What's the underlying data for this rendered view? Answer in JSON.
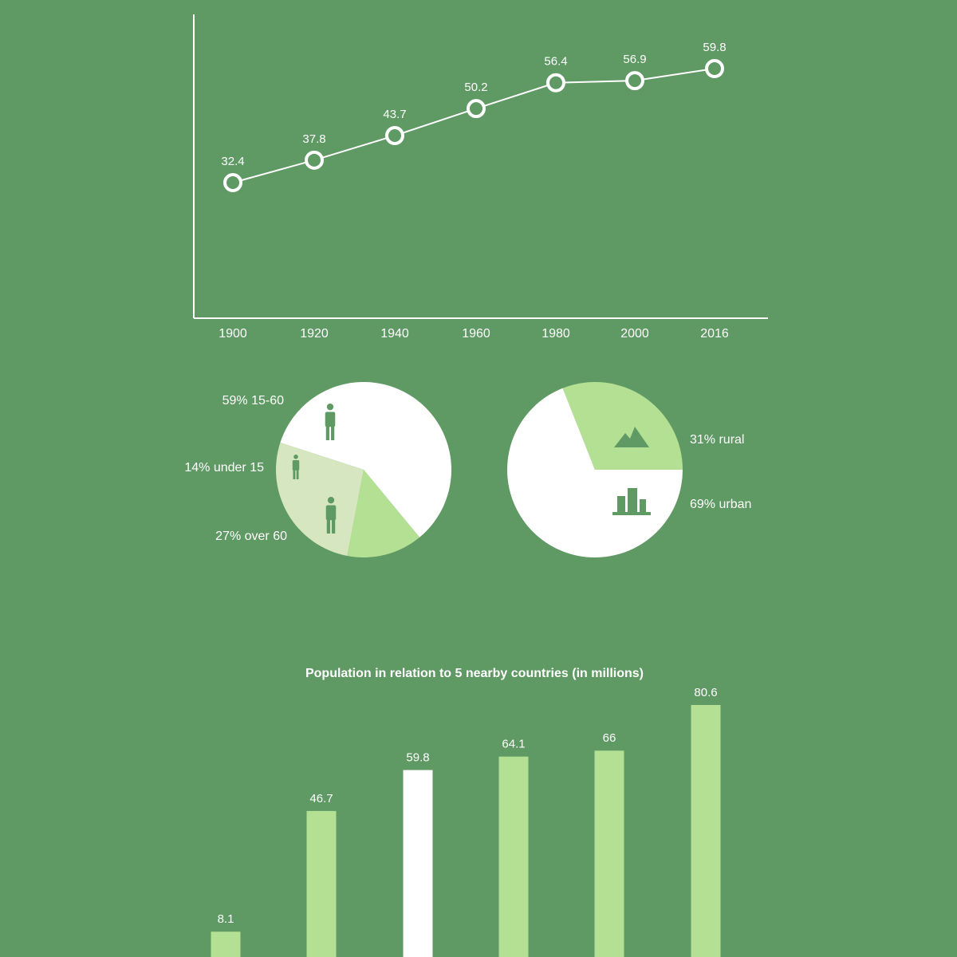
{
  "colors": {
    "background": "#5f9964",
    "white": "#ffffff",
    "light_green": "#b3e092",
    "pale_green": "#d6e6c0",
    "icon_green": "#5f9964"
  },
  "chart_data": [
    {
      "type": "line",
      "title": "",
      "x": [
        "1900",
        "1920",
        "1940",
        "1960",
        "1980",
        "2000",
        "2016"
      ],
      "values": [
        32.4,
        37.8,
        43.7,
        50.2,
        56.4,
        56.9,
        59.8
      ],
      "data_labels": [
        "32.4",
        "37.8",
        "43.7",
        "50.2",
        "56.4",
        "56.9",
        "59.8"
      ],
      "xlabel": "",
      "ylabel": "",
      "ylim": [
        0,
        65
      ],
      "grid": false,
      "marker": "hollow-circle"
    },
    {
      "type": "pie",
      "slices": [
        {
          "label": "59% 15-60",
          "value": 59,
          "color": "#ffffff",
          "icon": "adult-person-icon"
        },
        {
          "label": "14% under 15",
          "value": 14,
          "color": "#b3e092",
          "icon": "child-person-icon"
        },
        {
          "label": "27% over 60",
          "value": 27,
          "color": "#d6e6c0",
          "icon": "elderly-person-icon"
        }
      ]
    },
    {
      "type": "pie",
      "slices": [
        {
          "label": "31% rural",
          "value": 31,
          "color": "#b3e092",
          "icon": "mountains-icon"
        },
        {
          "label": "69% urban",
          "value": 69,
          "color": "#ffffff",
          "icon": "city-buildings-icon"
        }
      ]
    },
    {
      "type": "bar",
      "title": "Population in relation to 5 nearby countries (in millions)",
      "categories": [
        "",
        "",
        "",
        "",
        "",
        ""
      ],
      "values": [
        8.1,
        46.7,
        59.8,
        64.1,
        66,
        80.6
      ],
      "data_labels": [
        "8.1",
        "46.7",
        "59.8",
        "64.1",
        "66",
        "80.6"
      ],
      "highlight_index": 2,
      "bar_color": "#b3e092",
      "highlight_color": "#ffffff",
      "ylim": [
        0,
        90
      ]
    }
  ]
}
